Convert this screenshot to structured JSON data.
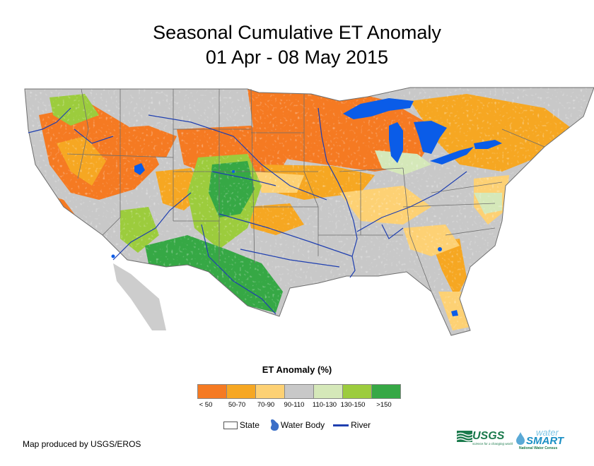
{
  "title": {
    "line1": "Seasonal Cumulative ET Anomaly",
    "line2": "01 Apr - 08 May 2015"
  },
  "legend": {
    "title": "ET Anomaly (%)",
    "classes": [
      {
        "label": "< 50",
        "color": "#f57a22"
      },
      {
        "label": "50-70",
        "color": "#f6a722"
      },
      {
        "label": "70-90",
        "color": "#fdd174"
      },
      {
        "label": "90-110",
        "color": "#c8c8c8"
      },
      {
        "label": "110-130",
        "color": "#d5e8b9"
      },
      {
        "label": "130-150",
        "color": "#9ccc3d"
      },
      {
        "label": ">150",
        "color": "#36a845"
      }
    ]
  },
  "key": {
    "state": "State",
    "water_body": "Water Body",
    "river": "River"
  },
  "credit": "Map produced by USGS/EROS",
  "logos": {
    "usgs": "USGS",
    "usgs_tagline": "science for a changing world",
    "watersmart_a": "water",
    "watersmart_b": "SMART",
    "watersmart_sub": "National Water Census"
  },
  "colors": {
    "water": "#0a5ce8",
    "river": "#1f3fb0",
    "state_line": "#6e6e6e",
    "background": "#ffffff"
  }
}
